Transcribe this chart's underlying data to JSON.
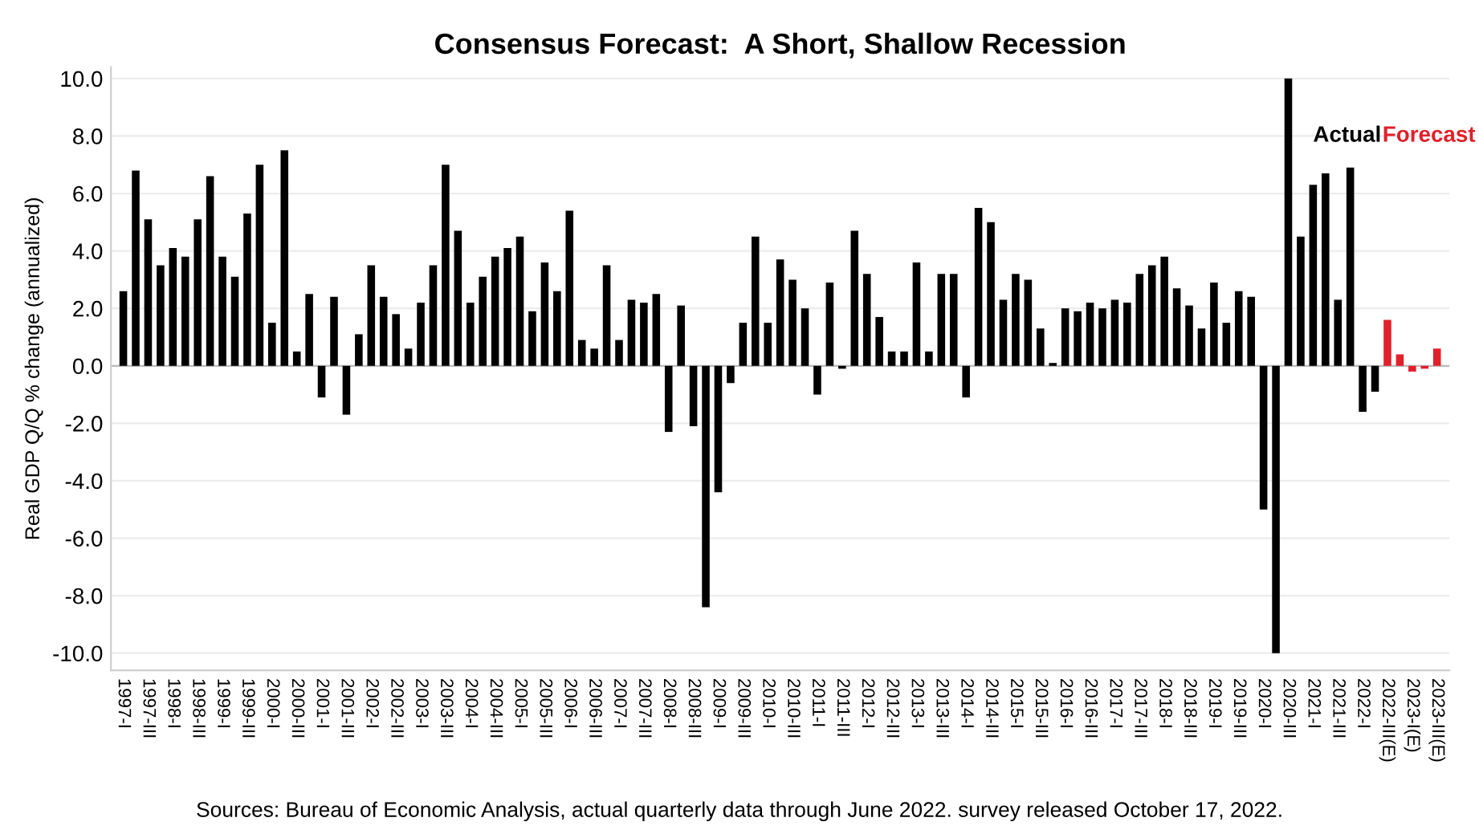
{
  "chart_data": {
    "type": "bar",
    "title": "Consensus Forecast:  A Short, Shallow Recession",
    "ylabel": "Real GDP Q/Q % change (annualized)",
    "categories": [
      "1997-I",
      null,
      "1997-III",
      null,
      "1998-I",
      null,
      "1998-III",
      null,
      "1999-I",
      null,
      "1999-III",
      null,
      "2000-I",
      null,
      "2000-III",
      null,
      "2001-I",
      null,
      "2001-III",
      null,
      "2002-I",
      null,
      "2002-III",
      null,
      "2003-I",
      null,
      "2003-III",
      null,
      "2004-I",
      null,
      "2004-III",
      null,
      "2005-I",
      null,
      "2005-III",
      null,
      "2006-I",
      null,
      "2006-III",
      null,
      "2007-I",
      null,
      "2007-III",
      null,
      "2008-I",
      null,
      "2008-III",
      null,
      "2009-I",
      null,
      "2009-III",
      null,
      "2010-I",
      null,
      "2010-III",
      null,
      "2011-I",
      null,
      "2011-III",
      null,
      "2012-I",
      null,
      "2012-III",
      null,
      "2013-I",
      null,
      "2013-III",
      null,
      "2014-I",
      null,
      "2014-III",
      null,
      "2015-I",
      null,
      "2015-III",
      null,
      "2016-I",
      null,
      "2016-III",
      null,
      "2017-I",
      null,
      "2017-III",
      null,
      "2018-I",
      null,
      "2018-III",
      null,
      "2019-I",
      null,
      "2019-III",
      null,
      "2020-I",
      null,
      "2020-III",
      null,
      "2021-I",
      null,
      "2021-III",
      null,
      "2022-I",
      null,
      "2022-III(E)",
      null,
      "2023-I(E)",
      null,
      "2023-III(E)"
    ],
    "series": [
      {
        "name": "Actual",
        "color": "#000000",
        "values": [
          2.6,
          6.8,
          5.1,
          3.5,
          4.1,
          3.8,
          5.1,
          6.6,
          3.8,
          3.1,
          5.3,
          7.0,
          1.5,
          7.5,
          0.5,
          2.5,
          -1.1,
          2.4,
          -1.7,
          1.1,
          3.5,
          2.4,
          1.8,
          0.6,
          2.2,
          3.5,
          7.0,
          4.7,
          2.2,
          3.1,
          3.8,
          4.1,
          4.5,
          1.9,
          3.6,
          2.6,
          5.4,
          0.9,
          0.6,
          3.5,
          0.9,
          2.3,
          2.2,
          2.5,
          -2.3,
          2.1,
          -2.1,
          -8.4,
          -4.4,
          -0.6,
          1.5,
          4.5,
          1.5,
          3.7,
          3.0,
          2.0,
          -1.0,
          2.9,
          -0.1,
          4.7,
          3.2,
          1.7,
          0.5,
          0.5,
          3.6,
          0.5,
          3.2,
          3.2,
          -1.1,
          5.5,
          5.0,
          2.3,
          3.2,
          3.0,
          1.3,
          0.1,
          2.0,
          1.9,
          2.2,
          2.0,
          2.3,
          2.2,
          3.2,
          3.5,
          3.8,
          2.7,
          2.1,
          1.3,
          2.9,
          1.5,
          2.6,
          2.4,
          -5.0,
          -10.0,
          10.0,
          4.5,
          6.3,
          6.7,
          2.3,
          6.9,
          -1.6,
          -0.9,
          null,
          null,
          null,
          null,
          null
        ]
      },
      {
        "name": "Forecast",
        "color": "#e0202a",
        "values": [
          null,
          null,
          null,
          null,
          null,
          null,
          null,
          null,
          null,
          null,
          null,
          null,
          null,
          null,
          null,
          null,
          null,
          null,
          null,
          null,
          null,
          null,
          null,
          null,
          null,
          null,
          null,
          null,
          null,
          null,
          null,
          null,
          null,
          null,
          null,
          null,
          null,
          null,
          null,
          null,
          null,
          null,
          null,
          null,
          null,
          null,
          null,
          null,
          null,
          null,
          null,
          null,
          null,
          null,
          null,
          null,
          null,
          null,
          null,
          null,
          null,
          null,
          null,
          null,
          null,
          null,
          null,
          null,
          null,
          null,
          null,
          null,
          null,
          null,
          null,
          null,
          null,
          null,
          null,
          null,
          null,
          null,
          null,
          null,
          null,
          null,
          null,
          null,
          null,
          null,
          null,
          null,
          null,
          null,
          null,
          null,
          null,
          null,
          null,
          null,
          null,
          null,
          1.6,
          0.4,
          -0.2,
          -0.1,
          0.6
        ]
      }
    ],
    "ylim": [
      -10.6,
      10.4
    ],
    "yticks": [
      {
        "value": -10,
        "label": "-10.0"
      },
      {
        "value": -8,
        "label": "-8.0"
      },
      {
        "value": -6,
        "label": "-6.0"
      },
      {
        "value": -4,
        "label": "-4.0"
      },
      {
        "value": -2,
        "label": "-2.0"
      },
      {
        "value": 0,
        "label": "0.0"
      },
      {
        "value": 2,
        "label": "2.0"
      },
      {
        "value": 4,
        "label": "4.0"
      },
      {
        "value": 6,
        "label": "6.0"
      },
      {
        "value": 8,
        "label": "8.0"
      },
      {
        "value": 10,
        "label": "10.0"
      }
    ],
    "grid": "y",
    "annotations": [
      "Sources: Bureau of Economic Analysis, actual quarterly data through June 2022. survey released October 17, 2022."
    ]
  }
}
